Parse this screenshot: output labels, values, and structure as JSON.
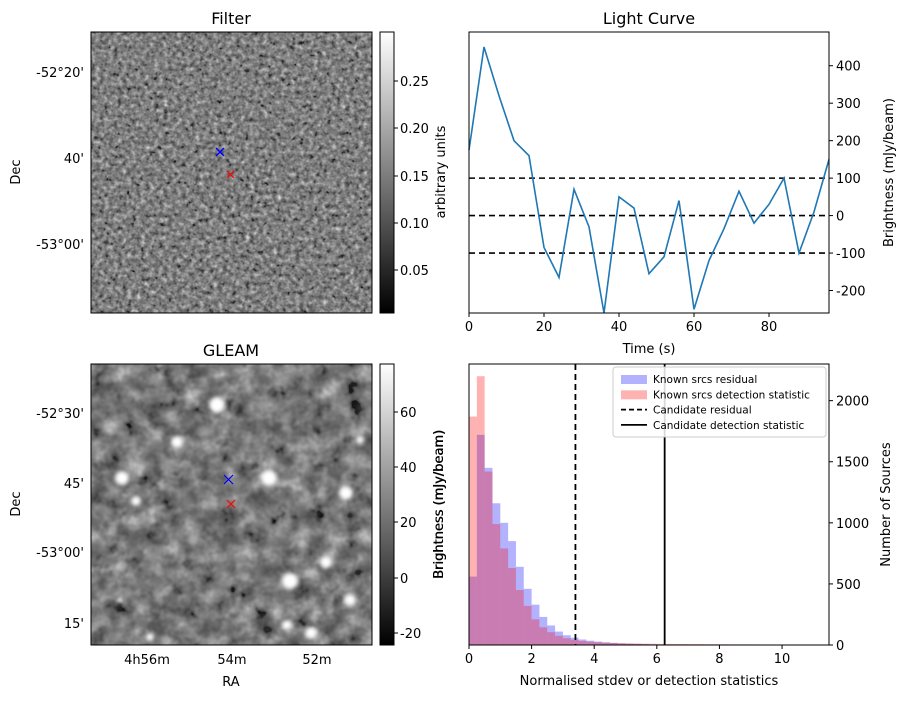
{
  "panels": {
    "filter": {
      "title": "Filter",
      "ylabel": "Dec",
      "yticks": [
        "-52°20'",
        "40'",
        "-53°00'"
      ],
      "colorbar": {
        "label": "arbitrary units",
        "ticks": [
          "0.25",
          "0.20",
          "0.15",
          "0.10",
          "0.05"
        ]
      },
      "markers": [
        {
          "label": "blue-cross",
          "color": "#0000ff"
        },
        {
          "label": "red-cross",
          "color": "#ff0000"
        }
      ]
    },
    "gleam": {
      "title": "GLEAM",
      "xlabel": "RA",
      "ylabel": "Dec",
      "xticks": [
        "4h56m",
        "54m",
        "52m"
      ],
      "yticks": [
        "-52°30'",
        "45'",
        "-53°00'",
        "15'"
      ],
      "colorbar": {
        "label": "Brightness (mJy/beam)",
        "ticks": [
          "60",
          "40",
          "20",
          "0",
          "-20"
        ]
      },
      "markers": [
        {
          "label": "blue-cross",
          "color": "#0000ff"
        },
        {
          "label": "red-cross",
          "color": "#ff0000"
        }
      ]
    }
  },
  "chart_data": [
    {
      "type": "line",
      "title": "Light Curve",
      "xlabel": "Time (s)",
      "ylabel": "Brightness (mJy/beam)",
      "xlim": [
        0,
        96
      ],
      "ylim": [
        -260,
        490
      ],
      "xticks": [
        0,
        20,
        40,
        60,
        80
      ],
      "yticks": [
        -200,
        -100,
        0,
        100,
        200,
        300,
        400
      ],
      "line_color": "#1f77b4",
      "series": [
        {
          "x": [
            0,
            4,
            8,
            12,
            16,
            20,
            24,
            28,
            32,
            36,
            40,
            44,
            48,
            52,
            56,
            60,
            64,
            68,
            72,
            76,
            80,
            84,
            88,
            92,
            96
          ],
          "values": [
            175,
            450,
            320,
            200,
            160,
            -85,
            -165,
            70,
            -30,
            -260,
            50,
            20,
            -155,
            -110,
            40,
            -250,
            -120,
            -35,
            65,
            -20,
            30,
            100,
            -100,
            10,
            150
          ]
        }
      ],
      "hlines": [
        {
          "y": 100,
          "style": "dashed",
          "color": "#000000"
        },
        {
          "y": 0,
          "style": "dashed",
          "color": "#000000"
        },
        {
          "y": -100,
          "style": "dashed",
          "color": "#000000"
        }
      ]
    },
    {
      "type": "bar",
      "xlabel": "Normalised stdev or detection statistics",
      "ylabel_left": "Brightness (mJy/beam)",
      "ylabel_right": "Number of Sources",
      "xlim": [
        0,
        11.5
      ],
      "ylim": [
        0,
        2300
      ],
      "xticks": [
        0,
        2,
        4,
        6,
        8,
        10
      ],
      "yticks": [
        0,
        500,
        1000,
        1500,
        2000
      ],
      "bin_width": 0.25,
      "bin_start": 0,
      "series": [
        {
          "name": "Known srcs residual",
          "color": "#0000ff",
          "opacity": 0.3,
          "values": [
            560,
            1720,
            1450,
            1160,
            1000,
            850,
            640,
            460,
            330,
            230,
            160,
            110,
            80,
            60,
            45,
            35,
            28,
            22,
            18,
            14,
            11,
            9,
            7,
            5,
            4,
            3,
            3,
            2,
            2,
            2,
            1,
            1
          ]
        },
        {
          "name": "Known srcs detection statistic",
          "color": "#ff0000",
          "opacity": 0.3,
          "values": [
            1870,
            2200,
            1420,
            990,
            790,
            630,
            450,
            320,
            210,
            145,
            105,
            75,
            55,
            42,
            33,
            27,
            22,
            19,
            16,
            14,
            13,
            12,
            11,
            10,
            9,
            9,
            8,
            8,
            7,
            7,
            6,
            6,
            6,
            5,
            5,
            5,
            5,
            4,
            4,
            4,
            4,
            3,
            3,
            3,
            3,
            3
          ]
        }
      ],
      "vlines": [
        {
          "name": "Candidate residual",
          "x": 3.4,
          "style": "dashed",
          "color": "#000000"
        },
        {
          "name": "Candidate detection statistic",
          "x": 6.25,
          "style": "solid",
          "color": "#000000"
        }
      ],
      "legend_position": "top-right"
    }
  ]
}
